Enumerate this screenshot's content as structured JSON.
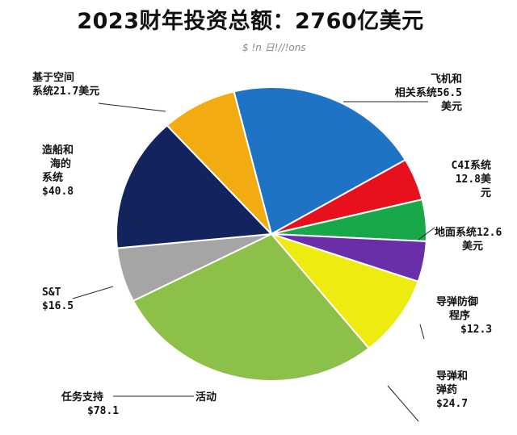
{
  "chart_data": {
    "type": "pie",
    "title": "2023财年投资总额：2760亿美元",
    "subtitle": "$ !n 日!//!ons",
    "slices": [
      {
        "key": "aircraft",
        "label_lines": [
          "飞机和",
          "相关系统56.5",
          "美元"
        ],
        "value": 56.5,
        "color": "#1f73c4"
      },
      {
        "key": "c4i",
        "label_lines": [
          "C4I系统",
          "12.8美",
          "元"
        ],
        "value": 12.8,
        "color": "#e8101d"
      },
      {
        "key": "ground",
        "label_lines": [
          "地面系统12.6",
          "美元"
        ],
        "value": 12.6,
        "color": "#18a84a"
      },
      {
        "key": "missile_defense",
        "label_lines": [
          "导弹防御",
          "程序",
          "$12.3"
        ],
        "value": 12.3,
        "color": "#6a2fa8"
      },
      {
        "key": "missiles",
        "label_lines": [
          "导弹和",
          "弹药",
          "$24.7"
        ],
        "value": 24.7,
        "color": "#eeeb10"
      },
      {
        "key": "mission_support",
        "label_lines": [
          "任务支持",
          "活动",
          "$78.1"
        ],
        "value": 78.1,
        "color": "#8dc048"
      },
      {
        "key": "st",
        "label_lines": [
          "S&T",
          "$16.5"
        ],
        "value": 16.5,
        "color": "#a5a5a5"
      },
      {
        "key": "shipbuilding",
        "label_lines": [
          "造船和",
          "海的",
          "系统",
          "$40.8"
        ],
        "value": 40.8,
        "color": "#13235e"
      },
      {
        "key": "space",
        "label_lines": [
          "基于空间",
          "系统21.7美元"
        ],
        "value": 21.7,
        "color": "#f2ab10"
      }
    ]
  }
}
